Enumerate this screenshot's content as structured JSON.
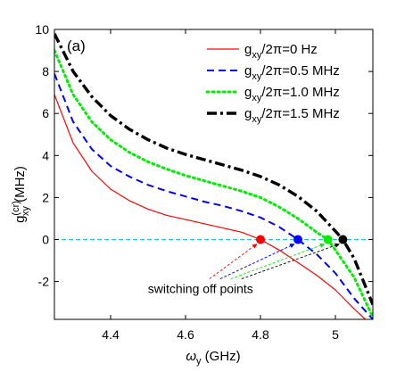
{
  "chart_data": {
    "type": "line",
    "panel_label": "(a)",
    "xlabel": "ω_y (GHz)",
    "ylabel": "g_xy^(cr) (MHz)",
    "xlim": [
      4.25,
      5.1
    ],
    "ylim": [
      -3.8,
      10
    ],
    "x_ticks": [
      4.4,
      4.6,
      4.8,
      5.0
    ],
    "x_tick_labels": [
      "4.4",
      "4.6",
      "4.8",
      "5"
    ],
    "y_ticks": [
      -2,
      0,
      2,
      4,
      6,
      8,
      10
    ],
    "y_tick_labels": [
      "-2",
      "0",
      "2",
      "4",
      "6",
      "8",
      "10"
    ],
    "grid": false,
    "legend_position": "top-right",
    "series": [
      {
        "name": "g_xy/2π=0 Hz",
        "color": "#ff0000",
        "style": "solid",
        "x": [
          4.25,
          4.3,
          4.35,
          4.4,
          4.45,
          4.5,
          4.55,
          4.6,
          4.65,
          4.7,
          4.75,
          4.8,
          4.85,
          4.9,
          4.95,
          5.0,
          5.05,
          5.08
        ],
        "y": [
          6.9,
          4.6,
          3.25,
          2.4,
          1.85,
          1.45,
          1.15,
          0.95,
          0.75,
          0.55,
          0.35,
          0.0,
          -0.5,
          -1.1,
          -1.7,
          -2.4,
          -3.3,
          -3.8
        ]
      },
      {
        "name": "g_xy/2π=0.5 MHz",
        "color": "#0000ff",
        "style": "dashed",
        "x": [
          4.25,
          4.3,
          4.35,
          4.4,
          4.45,
          4.5,
          4.55,
          4.6,
          4.65,
          4.7,
          4.75,
          4.8,
          4.85,
          4.9,
          4.95,
          5.0,
          5.05,
          5.1
        ],
        "y": [
          7.9,
          5.6,
          4.3,
          3.5,
          3.0,
          2.6,
          2.3,
          2.05,
          1.8,
          1.6,
          1.35,
          1.05,
          0.6,
          0.0,
          -0.7,
          -1.6,
          -2.8,
          -3.8
        ]
      },
      {
        "name": "g_xy/2π=1.0 MHz",
        "color": "#00ee00",
        "style": "dotted",
        "x": [
          4.25,
          4.3,
          4.35,
          4.4,
          4.45,
          4.5,
          4.55,
          4.6,
          4.65,
          4.7,
          4.75,
          4.8,
          4.85,
          4.9,
          4.95,
          4.98,
          5.0,
          5.05,
          5.1
        ],
        "y": [
          9.0,
          6.9,
          5.6,
          4.75,
          4.15,
          3.7,
          3.35,
          3.05,
          2.8,
          2.55,
          2.3,
          2.0,
          1.55,
          1.0,
          0.35,
          0.0,
          -0.5,
          -1.8,
          -3.7
        ]
      },
      {
        "name": "g_xy/2π=1.5 MHz",
        "color": "#000000",
        "style": "dashdot",
        "x": [
          4.25,
          4.3,
          4.35,
          4.4,
          4.45,
          4.5,
          4.55,
          4.6,
          4.65,
          4.7,
          4.75,
          4.8,
          4.85,
          4.9,
          4.95,
          5.0,
          5.02,
          5.05,
          5.1
        ],
        "y": [
          9.8,
          8.0,
          6.8,
          5.9,
          5.25,
          4.75,
          4.35,
          4.05,
          3.8,
          3.55,
          3.3,
          3.0,
          2.6,
          2.05,
          1.35,
          0.4,
          0.0,
          -0.9,
          -3.1
        ]
      }
    ],
    "markers": [
      {
        "x": 4.8,
        "y": 0,
        "color": "#ff0000"
      },
      {
        "x": 4.9,
        "y": 0,
        "color": "#0000ff"
      },
      {
        "x": 4.98,
        "y": 0,
        "color": "#00ee00"
      },
      {
        "x": 5.02,
        "y": 0,
        "color": "#000000"
      }
    ],
    "reference_line": {
      "y": 0,
      "color": "#00d0ff",
      "style": "dashed"
    },
    "annotation": {
      "text": "switching off points",
      "anchor": {
        "x": 4.64,
        "y": -2.55
      }
    }
  }
}
